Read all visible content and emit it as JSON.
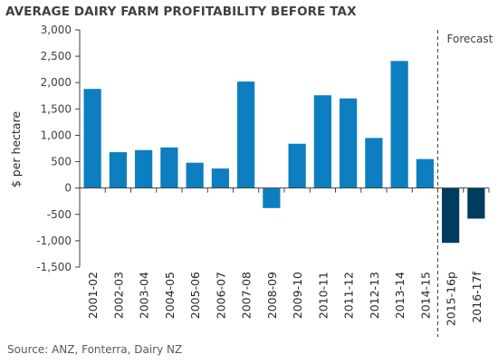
{
  "title": "AVERAGE DAIRY FARM PROFITABILITY BEFORE TAX",
  "source": "Source: ANZ, Fonterra, Dairy NZ",
  "colors": {
    "actual": "#0d7ec0",
    "forecast": "#003c5f"
  },
  "chart_data": {
    "type": "bar",
    "title": "AVERAGE DAIRY FARM PROFITABILITY BEFORE TAX",
    "xlabel": "",
    "ylabel": "$ per hectare",
    "ylim": [
      -1500,
      3000
    ],
    "yticks": [
      "3,000",
      "2,500",
      "2,000",
      "1,500",
      "1,000",
      "500",
      "0",
      "-500",
      "-1,000",
      "-1,500"
    ],
    "ytick_values": [
      3000,
      2500,
      2000,
      1500,
      1000,
      500,
      0,
      -500,
      -1000,
      -1500
    ],
    "categories": [
      "2001-02",
      "2002-03",
      "2003-04",
      "2004-05",
      "2005-06",
      "2006-07",
      "2007-08",
      "2008-09",
      "2009-10",
      "2010-11",
      "2011-12",
      "2012-13",
      "2013-14",
      "2014-15",
      "2015-16p",
      "2016-17f"
    ],
    "values": [
      1880,
      680,
      720,
      770,
      480,
      370,
      2020,
      -380,
      840,
      1760,
      1700,
      950,
      2410,
      550,
      -1040,
      -580
    ],
    "forecast_from_index": 14,
    "annotation": "Forecast",
    "grid": false,
    "legend": "none"
  }
}
